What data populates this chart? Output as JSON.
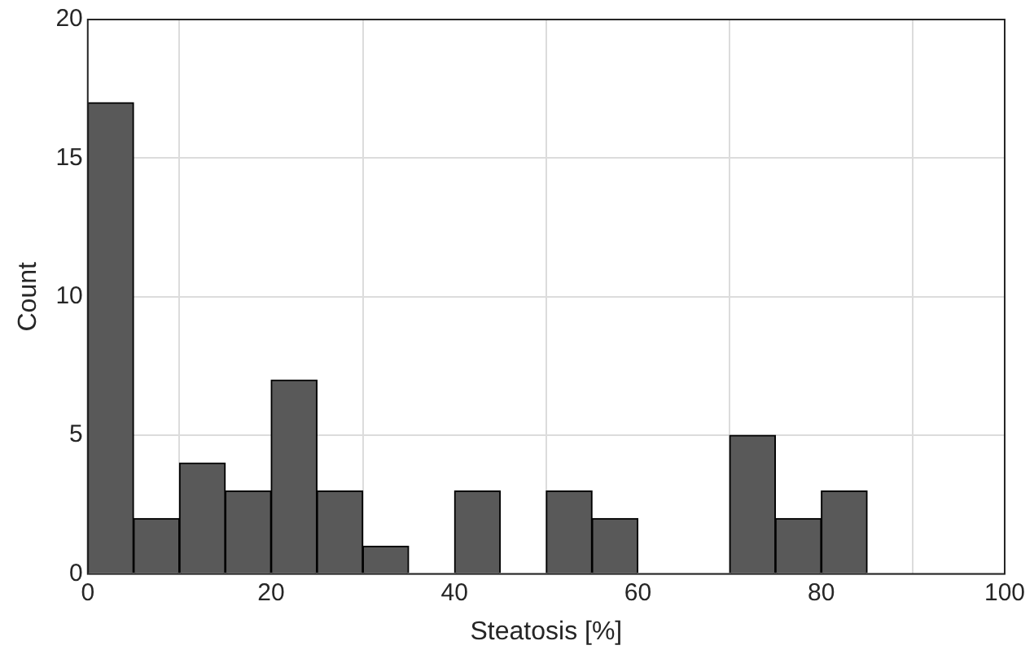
{
  "chart_data": {
    "type": "histogram",
    "xlabel": "Steatosis [%]",
    "ylabel": "Count",
    "bins": [
      0,
      5,
      10,
      15,
      20,
      25,
      30,
      35,
      40,
      45,
      50,
      55,
      60,
      65,
      70,
      75,
      80,
      85
    ],
    "values": [
      17,
      2,
      4,
      3,
      7,
      3,
      1,
      0,
      3,
      0,
      3,
      2,
      0,
      0,
      5,
      2,
      3
    ],
    "color": "#595959",
    "xlim": [
      0,
      100
    ],
    "xticks": [
      0,
      20,
      40,
      60,
      80,
      100
    ],
    "ylim": [
      0,
      20
    ],
    "yticks": [
      0,
      5,
      10,
      15,
      20
    ],
    "grid": true,
    "legend": false
  }
}
